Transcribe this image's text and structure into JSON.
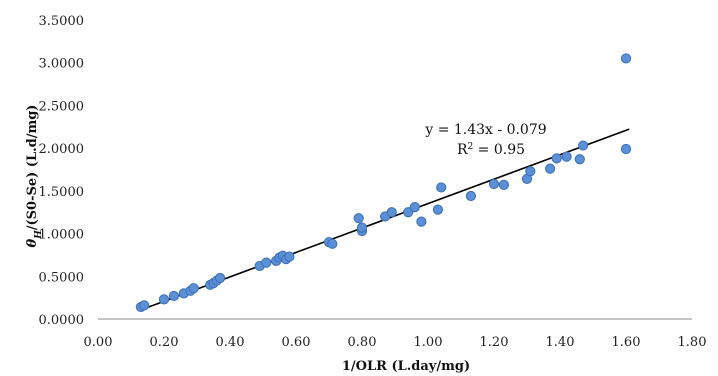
{
  "chart_data": {
    "type": "scatter",
    "xlabel": "1/OLR (L.day/mg)",
    "ylabel_symbol": "θ",
    "ylabel_subscript": "H",
    "ylabel_rest": "/(S0-Se) (L.d/mg)",
    "xlim": [
      0.0,
      1.8
    ],
    "ylim": [
      0.0,
      3.5
    ],
    "x_ticks": [
      "0.00",
      "0.20",
      "0.40",
      "0.60",
      "0.80",
      "1.00",
      "1.20",
      "1.40",
      "1.60",
      "1.80"
    ],
    "y_ticks": [
      "0.0000",
      "0.5000",
      "1.0000",
      "1.5000",
      "2.0000",
      "2.5000",
      "3.0000",
      "3.5000"
    ],
    "grid": false,
    "marker_color": "#5b8fd6",
    "marker_edge": "#3a6fb5",
    "trendline_color": "#000000",
    "trendline": {
      "slope": 1.43,
      "intercept": -0.079,
      "x_range": [
        0.13,
        1.61
      ]
    },
    "equation_text": "y = 1.43x - 0.079",
    "r2_prefix": "R",
    "r2_sup": "2",
    "r2_suffix": " = 0.95",
    "points": [
      [
        0.13,
        0.14
      ],
      [
        0.14,
        0.16
      ],
      [
        0.2,
        0.23
      ],
      [
        0.23,
        0.27
      ],
      [
        0.26,
        0.3
      ],
      [
        0.28,
        0.33
      ],
      [
        0.29,
        0.36
      ],
      [
        0.34,
        0.4
      ],
      [
        0.35,
        0.42
      ],
      [
        0.36,
        0.45
      ],
      [
        0.37,
        0.48
      ],
      [
        0.49,
        0.62
      ],
      [
        0.51,
        0.66
      ],
      [
        0.54,
        0.68
      ],
      [
        0.55,
        0.72
      ],
      [
        0.56,
        0.74
      ],
      [
        0.57,
        0.7
      ],
      [
        0.58,
        0.73
      ],
      [
        0.7,
        0.9
      ],
      [
        0.71,
        0.88
      ],
      [
        0.79,
        1.18
      ],
      [
        0.8,
        1.03
      ],
      [
        0.8,
        1.07
      ],
      [
        0.87,
        1.2
      ],
      [
        0.89,
        1.25
      ],
      [
        0.94,
        1.25
      ],
      [
        0.96,
        1.31
      ],
      [
        0.98,
        1.14
      ],
      [
        1.03,
        1.28
      ],
      [
        1.04,
        1.54
      ],
      [
        1.13,
        1.44
      ],
      [
        1.2,
        1.58
      ],
      [
        1.23,
        1.57
      ],
      [
        1.3,
        1.64
      ],
      [
        1.31,
        1.73
      ],
      [
        1.37,
        1.76
      ],
      [
        1.39,
        1.88
      ],
      [
        1.42,
        1.9
      ],
      [
        1.46,
        1.87
      ],
      [
        1.47,
        2.03
      ],
      [
        1.6,
        1.99
      ],
      [
        1.6,
        3.05
      ]
    ]
  }
}
